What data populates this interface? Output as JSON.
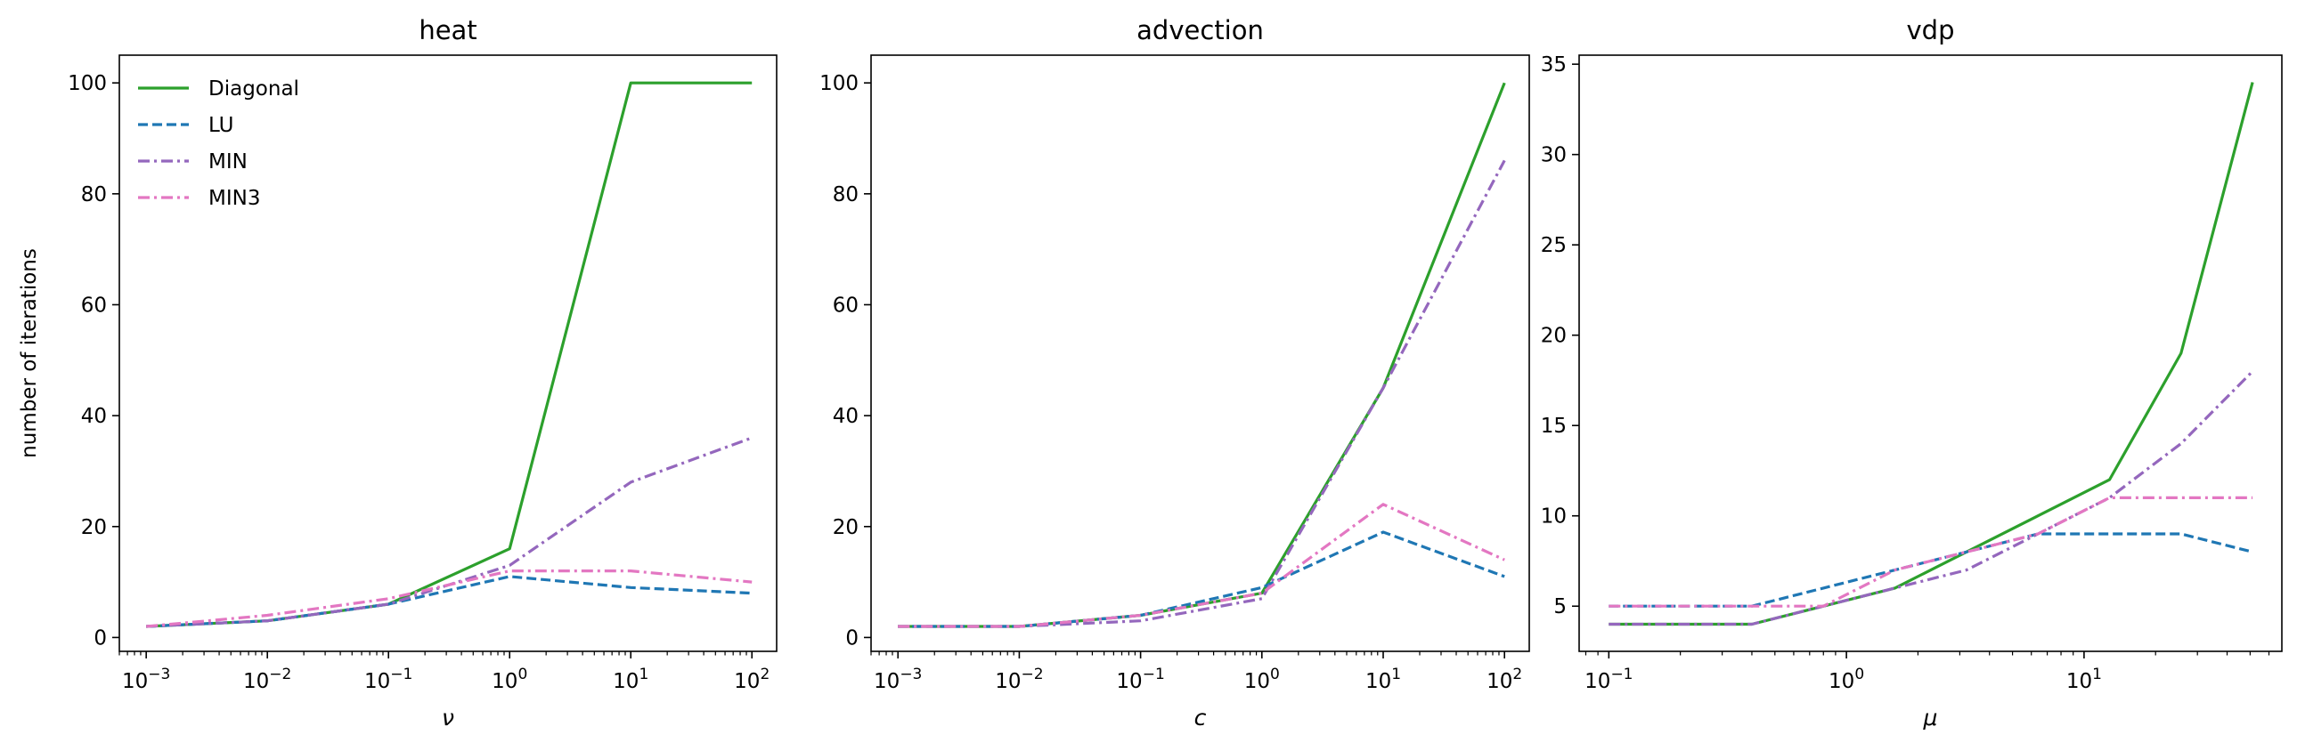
{
  "figure": {
    "panels": [
      "heat",
      "advection",
      "vdp"
    ]
  },
  "legend": {
    "entries": [
      {
        "name": "Diagonal",
        "color": "#2ca02c",
        "dash": "solid"
      },
      {
        "name": "LU",
        "color": "#1f77b4",
        "dash": "dashed"
      },
      {
        "name": "MIN",
        "color": "#9467bd",
        "dash": "dashdot"
      },
      {
        "name": "MIN3",
        "color": "#e377c2",
        "dash": "dashdot"
      }
    ],
    "location": "upper-left of first panel"
  },
  "chart_data": [
    {
      "type": "line",
      "title": "heat",
      "xlabel": "ν",
      "ylabel": "number of iterations",
      "xscale": "log",
      "xlim": [
        0.0006,
        160
      ],
      "ylim": [
        -2.5,
        105
      ],
      "xticks": [
        0.001,
        0.01,
        0.1,
        1,
        10,
        100
      ],
      "xticklabels": [
        "10^-3",
        "10^-2",
        "10^-1",
        "10^0",
        "10^1",
        "10^2"
      ],
      "yticks": [
        0,
        20,
        40,
        60,
        80,
        100
      ],
      "yticklabels": [
        "0",
        "20",
        "40",
        "60",
        "80",
        "100"
      ],
      "x": [
        0.001,
        0.01,
        0.1,
        1,
        10,
        100
      ],
      "series": [
        {
          "name": "Diagonal",
          "values": [
            2,
            3,
            6,
            16,
            100,
            100
          ]
        },
        {
          "name": "LU",
          "values": [
            2,
            3,
            6,
            11,
            9,
            8
          ]
        },
        {
          "name": "MIN",
          "values": [
            2,
            3,
            6,
            13,
            28,
            36
          ]
        },
        {
          "name": "MIN3",
          "values": [
            2,
            4,
            7,
            12,
            12,
            10
          ]
        }
      ],
      "legend": true,
      "grid": false
    },
    {
      "type": "line",
      "title": "advection",
      "xlabel": "c",
      "ylabel": "",
      "xscale": "log",
      "xlim": [
        0.0006,
        160
      ],
      "ylim": [
        -2.5,
        105
      ],
      "xticks": [
        0.001,
        0.01,
        0.1,
        1,
        10,
        100
      ],
      "xticklabels": [
        "10^-3",
        "10^-2",
        "10^-1",
        "10^0",
        "10^1",
        "10^2"
      ],
      "yticks": [
        0,
        20,
        40,
        60,
        80,
        100
      ],
      "yticklabels": [
        "0",
        "20",
        "40",
        "60",
        "80",
        "100"
      ],
      "x": [
        0.001,
        0.01,
        0.1,
        1,
        10,
        100
      ],
      "series": [
        {
          "name": "Diagonal",
          "values": [
            2,
            2,
            4,
            8,
            45,
            100
          ]
        },
        {
          "name": "LU",
          "values": [
            2,
            2,
            4,
            9,
            19,
            11
          ]
        },
        {
          "name": "MIN",
          "values": [
            2,
            2,
            3,
            7,
            45,
            86
          ]
        },
        {
          "name": "MIN3",
          "values": [
            2,
            2,
            4,
            8,
            24,
            14
          ]
        }
      ],
      "legend": false,
      "grid": false
    },
    {
      "type": "line",
      "title": "vdp",
      "xlabel": "μ",
      "ylabel": "",
      "xscale": "log",
      "xlim": [
        0.075,
        68
      ],
      "ylim": [
        2.5,
        35.5
      ],
      "xticks": [
        0.1,
        1,
        10
      ],
      "xticklabels": [
        "10^-1",
        "10^0",
        "10^1"
      ],
      "yticks": [
        5,
        10,
        15,
        20,
        25,
        30,
        35
      ],
      "yticklabels": [
        "5",
        "10",
        "15",
        "20",
        "25",
        "30",
        "35"
      ],
      "x": [
        0.1,
        0.2,
        0.4,
        0.8,
        1.6,
        3.2,
        6.4,
        12.8,
        25.6,
        51.2
      ],
      "series": [
        {
          "name": "Diagonal",
          "values": [
            4,
            4,
            4,
            5,
            6,
            8,
            10,
            12,
            19,
            34
          ]
        },
        {
          "name": "LU",
          "values": [
            5,
            5,
            5,
            6,
            7,
            8,
            9,
            9,
            9,
            8
          ]
        },
        {
          "name": "MIN",
          "values": [
            4,
            4,
            4,
            5,
            6,
            7,
            9,
            11,
            14,
            18
          ]
        },
        {
          "name": "MIN3",
          "values": [
            5,
            5,
            5,
            5,
            7,
            8,
            9,
            11,
            11,
            11
          ]
        }
      ],
      "legend": false,
      "grid": false
    }
  ]
}
